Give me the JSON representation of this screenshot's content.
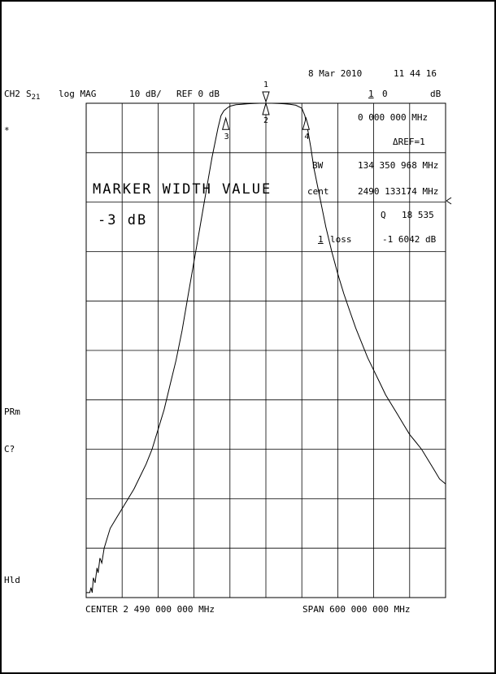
{
  "header": {
    "date": "8 Mar 2010",
    "time": "11 44 16",
    "channel": "CH2",
    "param_main": "S",
    "param_sub": "21",
    "format": "log MAG",
    "scale": "10 dB/",
    "ref": "REF 0 dB",
    "marker_num": "1",
    "marker_val": "0",
    "marker_unit": "dB"
  },
  "left_annotations": {
    "star": "*",
    "prm": "PRm",
    "c": "C?",
    "hld": "Hld"
  },
  "marker_table": {
    "freq": "0 000 000 MHz",
    "delta_ref": "ΔREF=1",
    "bw_label": "BW",
    "bw_value": "134 350 968 MHz",
    "cent_label": "cent",
    "cent_value": "2490 133174 MHz",
    "q_label": "Q",
    "q_value": "18 535",
    "loss_label": "loss",
    "loss_value": "-1 6042 dB",
    "loss_marker": "1"
  },
  "overlay": {
    "title": "MARKER WIDTH VALUE",
    "subtitle": "-3 dB"
  },
  "markers": [
    {
      "label": "1",
      "x_mhz": 2490,
      "y_db": 0
    },
    {
      "label": "2",
      "x_mhz": 2490,
      "y_db": 0
    },
    {
      "label": "3",
      "x_mhz": 2423,
      "y_db": -3
    },
    {
      "label": "4",
      "x_mhz": 2557,
      "y_db": -3
    }
  ],
  "footer": {
    "center": "CENTER 2 490 000 000 MHz",
    "span": "SPAN  600 000 000 MHz"
  },
  "chart_data": {
    "type": "line",
    "title": "",
    "xlabel": "",
    "ylabel": "",
    "xlim": [
      2190,
      2790
    ],
    "ylim": [
      -100,
      0
    ],
    "grid": true,
    "x_divisions": 10,
    "y_divisions": 10,
    "series": [
      {
        "x": [
          2190,
          2193,
          2196,
          2198,
          2200,
          2202,
          2205,
          2208,
          2210,
          2213,
          2216,
          2220,
          2225,
          2230,
          2240,
          2250,
          2260,
          2270,
          2280,
          2290,
          2300,
          2310,
          2320,
          2330,
          2340,
          2350,
          2360,
          2370,
          2380,
          2390,
          2400,
          2410,
          2415,
          2420,
          2425,
          2430,
          2440,
          2450,
          2460,
          2470,
          2480,
          2490,
          2500,
          2510,
          2520,
          2530,
          2540,
          2550,
          2555,
          2560,
          2565,
          2570,
          2580,
          2590,
          2600,
          2610,
          2620,
          2630,
          2640,
          2650,
          2660,
          2670,
          2680,
          2690,
          2700,
          2710,
          2720,
          2730,
          2740,
          2750,
          2760,
          2770,
          2780,
          2790
        ],
        "y": [
          -99,
          -99,
          -99,
          -98,
          -99,
          -96,
          -97,
          -94,
          -95,
          -92,
          -93,
          -90,
          -88,
          -86,
          -84,
          -82,
          -80,
          -78,
          -75.5,
          -73,
          -70,
          -66,
          -62,
          -57,
          -52,
          -46,
          -39,
          -32,
          -25,
          -18,
          -11,
          -5,
          -2.5,
          -1.5,
          -1,
          -0.6,
          -0.3,
          -0.2,
          -0.1,
          -0.05,
          0,
          0,
          0,
          -0.05,
          -0.1,
          -0.2,
          -0.4,
          -1,
          -2.5,
          -5.5,
          -9,
          -13,
          -19,
          -25,
          -30,
          -34.5,
          -38.5,
          -42,
          -45.5,
          -48.5,
          -51.5,
          -54,
          -56.5,
          -59,
          -61,
          -63,
          -65,
          -67,
          -68.5,
          -70,
          -72,
          -74,
          -76,
          -77
        ]
      }
    ]
  }
}
